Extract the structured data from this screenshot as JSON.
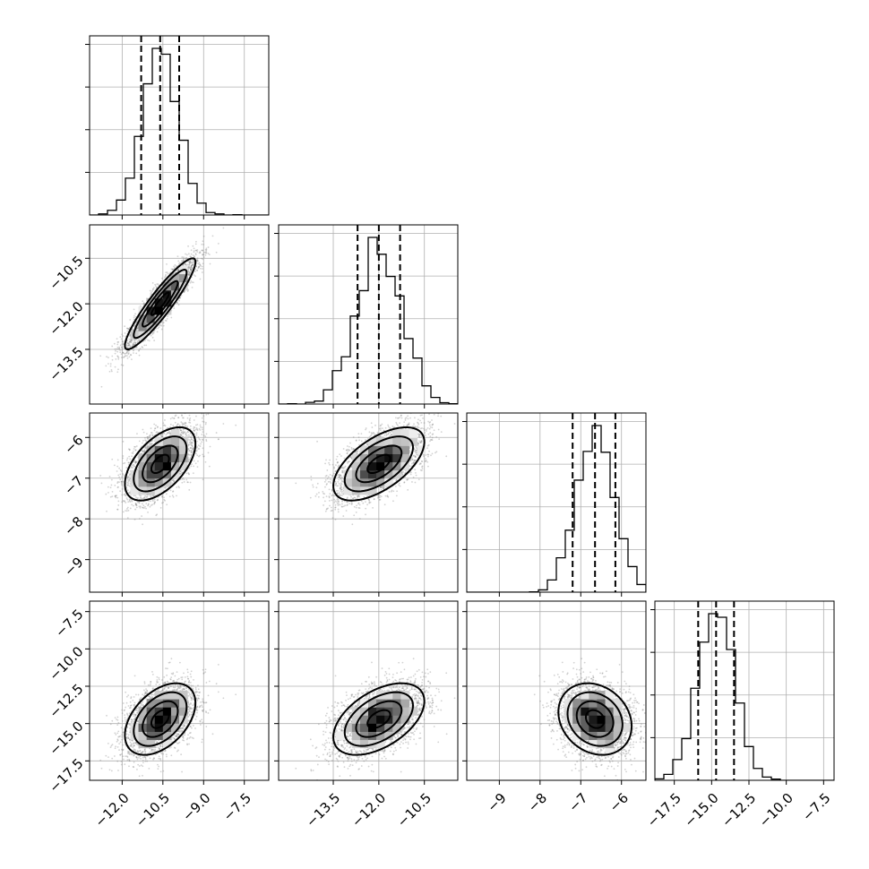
{
  "chart_data": {
    "type": "corner",
    "parameters": [
      {
        "range": [
          -13.2,
          -6.6
        ],
        "ticks": [
          -12.0,
          -10.5,
          -9.0,
          -7.5
        ],
        "tick_labels": [
          "−12.0",
          "−10.5",
          "−9.0",
          "−7.5"
        ],
        "mean": -10.6,
        "sd": 0.65,
        "quantiles": [
          -11.3,
          -10.6,
          -9.9
        ]
      },
      {
        "range": [
          -15.3,
          -9.4
        ],
        "ticks": [
          -13.5,
          -12.0,
          -10.5
        ],
        "tick_labels": [
          "−13.5",
          "−12.0",
          "−10.5"
        ],
        "mean": -12.0,
        "sd": 0.75,
        "quantiles": [
          -12.7,
          -12.0,
          -11.3
        ]
      },
      {
        "range": [
          -9.8,
          -5.4
        ],
        "ticks": [
          -9,
          -8,
          -7,
          -6
        ],
        "tick_labels": [
          "−9",
          "−8",
          "−7",
          "−6"
        ],
        "mean": -6.65,
        "sd": 0.45,
        "quantiles": [
          -7.2,
          -6.65,
          -6.15
        ]
      },
      {
        "range": [
          -18.8,
          -6.8
        ],
        "ticks": [
          -17.5,
          -15.0,
          -12.5,
          -10.0,
          -7.5
        ],
        "tick_labels": [
          "−17.5",
          "−15.0",
          "−12.5",
          "−10.0",
          "−7.5"
        ],
        "mean": -14.7,
        "sd": 1.2,
        "quantiles": [
          -15.9,
          -14.7,
          -13.5
        ]
      }
    ],
    "correlations": [
      [
        1,
        0.92,
        0.55,
        0.45
      ],
      [
        0.92,
        1,
        0.6,
        0.5
      ],
      [
        0.55,
        0.6,
        1,
        -0.2
      ],
      [
        0.45,
        0.5,
        -0.2,
        1
      ]
    ],
    "histogram_bins": 20,
    "contour_levels_sigma": [
      0.5,
      1.0,
      1.5,
      2.0
    ],
    "grid": true,
    "title": "",
    "colors": {
      "line": "#000000",
      "grid": "#b0b0b0",
      "scatter": "#7f7f7f"
    }
  }
}
